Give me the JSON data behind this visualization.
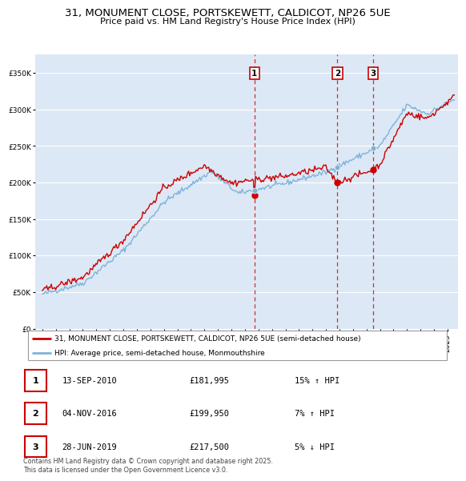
{
  "title_line1": "31, MONUMENT CLOSE, PORTSKEWETT, CALDICOT, NP26 5UE",
  "title_line2": "Price paid vs. HM Land Registry's House Price Index (HPI)",
  "legend_label1": "31, MONUMENT CLOSE, PORTSKEWETT, CALDICOT, NP26 5UE (semi-detached house)",
  "legend_label2": "HPI: Average price, semi-detached house, Monmouthshire",
  "footer": "Contains HM Land Registry data © Crown copyright and database right 2025.\nThis data is licensed under the Open Government Licence v3.0.",
  "sale_points": [
    {
      "label": "1",
      "date": "13-SEP-2010",
      "price": 181995,
      "pct": "15%",
      "direction": "↑",
      "x_year": 2010.71
    },
    {
      "label": "2",
      "date": "04-NOV-2016",
      "price": 199950,
      "pct": "7%",
      "direction": "↑",
      "x_year": 2016.84
    },
    {
      "label": "3",
      "date": "28-JUN-2019",
      "price": 217500,
      "pct": "5%",
      "direction": "↓",
      "x_year": 2019.49
    }
  ],
  "vline_years": [
    2010.71,
    2016.84,
    2019.49
  ],
  "plot_bg_color": "#dce8f5",
  "red_color": "#cc0000",
  "blue_color": "#7fb3d9",
  "ylim": [
    0,
    375000
  ],
  "yticks": [
    0,
    50000,
    100000,
    150000,
    200000,
    250000,
    300000,
    350000
  ],
  "xlim_start": 1994.5,
  "xlim_end": 2025.8
}
